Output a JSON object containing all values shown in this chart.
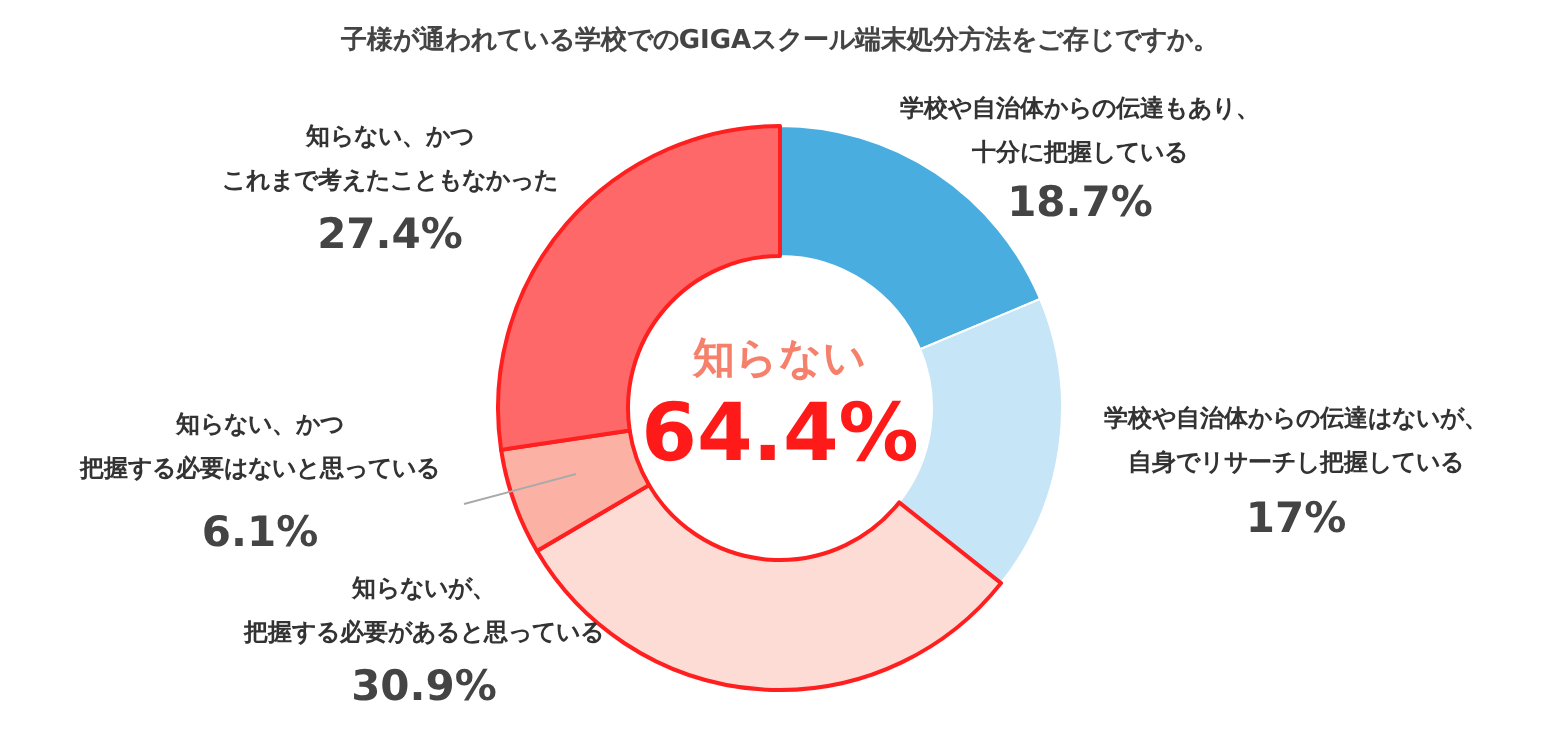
{
  "chart_data": {
    "type": "donut",
    "title": "子様が通われている学校でのGIGAスクール端末処分方法をご存じですか。",
    "categories": [
      "学校や自治体からの伝達もあり、十分に把握している",
      "学校や自治体からの伝達はないが、自身でリサーチし把握している",
      "知らないが、把握する必要があると思っている",
      "知らない、かつ把握する必要はないと思っている",
      "知らない、かつこれまで考えたこともなかった"
    ],
    "values": [
      18.7,
      17,
      30.9,
      6.1,
      27.4
    ],
    "value_labels": [
      "18.7%",
      "17%",
      "30.9%",
      "6.1%",
      "27.4%"
    ],
    "colors": [
      "#49ade0",
      "#c6e5f6",
      "#fddcd6",
      "#fbb2a5",
      "#ff6868"
    ],
    "annotations": [
      "知らない",
      "64.4%"
    ],
    "legend": false
  }
}
